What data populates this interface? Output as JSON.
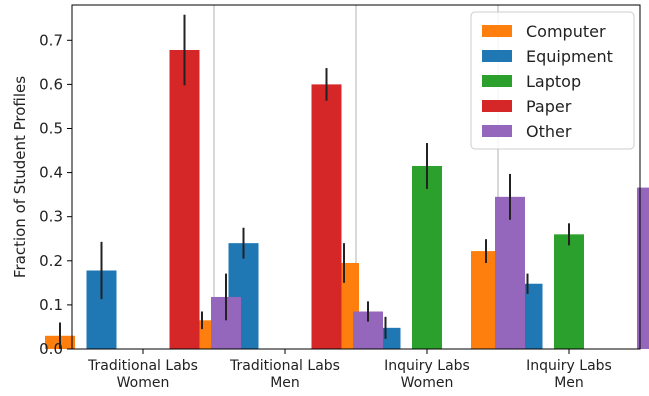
{
  "chart_data": {
    "type": "bar",
    "title": "",
    "xlabel": "",
    "ylabel": "Fraction of Student Profiles",
    "ylim": [
      0,
      0.78
    ],
    "y_ticks": [
      0.0,
      0.1,
      0.2,
      0.3,
      0.4,
      0.5,
      0.6,
      0.7
    ],
    "y_tick_labels": [
      "0.0",
      "0.1",
      "0.2",
      "0.3",
      "0.4",
      "0.5",
      "0.6",
      "0.7"
    ],
    "categories": [
      [
        "Traditional Labs",
        "Women"
      ],
      [
        "Traditional Labs",
        "Men"
      ],
      [
        "Inquiry Labs",
        "Women"
      ],
      [
        "Inquiry Labs",
        "Men"
      ]
    ],
    "grid": "vertical separators between groups",
    "legend_position": "top-right",
    "error_bars": true,
    "series": [
      {
        "name": "Computer",
        "color": "#ff7f0e",
        "values": [
          0.03,
          0.065,
          0.195,
          0.222
        ],
        "error": [
          0.03,
          0.02,
          0.045,
          0.027
        ]
      },
      {
        "name": "Equipment",
        "color": "#1f77b4",
        "values": [
          0.178,
          0.24,
          0.048,
          0.148
        ],
        "error": [
          0.065,
          0.035,
          0.025,
          0.023
        ]
      },
      {
        "name": "Laptop",
        "color": "#2ca02c",
        "values": [
          null,
          null,
          0.415,
          0.26
        ],
        "error": [
          null,
          null,
          0.052,
          0.025
        ]
      },
      {
        "name": "Paper",
        "color": "#d62728",
        "values": [
          0.678,
          0.6,
          null,
          null
        ],
        "error": [
          0.08,
          0.037,
          null,
          null
        ]
      },
      {
        "name": "Other",
        "color": "#9467bd",
        "values": [
          0.118,
          0.085,
          0.345,
          0.366
        ],
        "error": [
          0.053,
          0.023,
          0.052,
          0.03
        ]
      }
    ]
  }
}
